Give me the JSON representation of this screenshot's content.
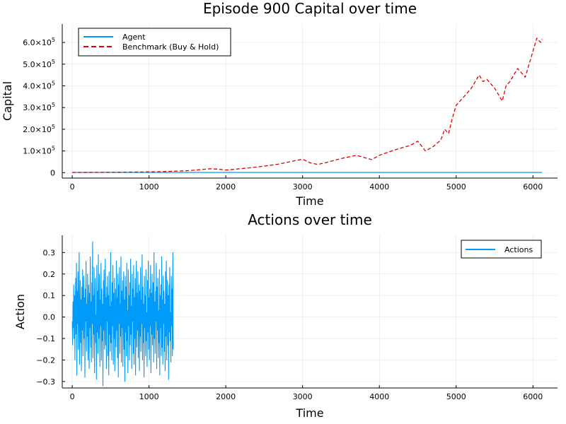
{
  "chart_data": [
    {
      "type": "line",
      "title": "Episode 900 Capital over time",
      "xlabel": "Time",
      "ylabel": "Capital",
      "xlim": [
        -130,
        6320
      ],
      "ylim": [
        -25000,
        685000
      ],
      "xticks": [
        0,
        1000,
        2000,
        3000,
        4000,
        5000,
        6000
      ],
      "xtick_labels": [
        "0",
        "1000",
        "2000",
        "3000",
        "4000",
        "5000",
        "6000"
      ],
      "yticks": [
        0,
        100000,
        200000,
        300000,
        400000,
        500000,
        600000
      ],
      "ytick_labels": [
        "0",
        "1.0×10",
        "2.0×10",
        "3.0×10",
        "4.0×10",
        "5.0×10",
        "6.0×10"
      ],
      "ytick_exponent": "5",
      "grid": true,
      "legend_position": "top-left",
      "series": [
        {
          "name": "Agent",
          "color": "#009af9",
          "style": "solid",
          "x": [
            0,
            6120
          ],
          "values": [
            1000,
            1000
          ]
        },
        {
          "name": "Benchmark (Buy & Hold)",
          "color": "#e20000",
          "style": "dashed",
          "x": [
            0,
            300,
            600,
            900,
            1200,
            1500,
            1800,
            1900,
            2000,
            2100,
            2300,
            2500,
            2700,
            2900,
            3000,
            3100,
            3200,
            3300,
            3500,
            3700,
            3900,
            4000,
            4200,
            4400,
            4500,
            4600,
            4700,
            4800,
            4850,
            4900,
            4950,
            5000,
            5100,
            5200,
            5300,
            5350,
            5400,
            5500,
            5600,
            5650,
            5700,
            5800,
            5900,
            6000,
            6050,
            6100,
            6120
          ],
          "values": [
            1000,
            1500,
            2000,
            3000,
            5000,
            9000,
            18000,
            16000,
            12000,
            15000,
            22000,
            30000,
            40000,
            55000,
            62000,
            45000,
            38000,
            46000,
            65000,
            80000,
            60000,
            80000,
            105000,
            125000,
            145000,
            100000,
            120000,
            150000,
            200000,
            180000,
            250000,
            310000,
            350000,
            390000,
            450000,
            420000,
            430000,
            390000,
            330000,
            400000,
            420000,
            480000,
            440000,
            560000,
            620000,
            600000,
            615000
          ]
        }
      ]
    },
    {
      "type": "line",
      "title": "Actions over time",
      "xlabel": "Time",
      "ylabel": "Action",
      "xlim": [
        -130,
        6320
      ],
      "ylim": [
        -0.33,
        0.38
      ],
      "xticks": [
        0,
        1000,
        2000,
        3000,
        4000,
        5000,
        6000
      ],
      "xtick_labels": [
        "0",
        "1000",
        "2000",
        "3000",
        "4000",
        "5000",
        "6000"
      ],
      "yticks": [
        -0.3,
        -0.2,
        -0.1,
        0.0,
        0.1,
        0.2,
        0.3
      ],
      "ytick_labels": [
        "−0.3",
        "−0.2",
        "−0.1",
        "0.0",
        "0.1",
        "0.2",
        "0.3"
      ],
      "grid": true,
      "legend_position": "top-right",
      "series": [
        {
          "name": "Actions",
          "color": "#009af9",
          "style": "solid",
          "x_start": 0,
          "x_step": 5,
          "values": [
            -0.02,
            -0.13,
            0.07,
            -0.05,
            0.15,
            -0.1,
            0.1,
            -0.2,
            0.05,
            0.18,
            -0.08,
            0.25,
            -0.27,
            0.12,
            -0.03,
            0.21,
            -0.15,
            0.03,
            0.3,
            -0.22,
            0.0,
            0.17,
            -0.12,
            0.08,
            -0.25,
            0.14,
            -0.06,
            0.22,
            -0.18,
            0.04,
            0.19,
            -0.1,
            0.09,
            -0.28,
            0.13,
            -0.02,
            0.26,
            -0.16,
            0.06,
            -0.09,
            0.2,
            -0.2,
            0.02,
            0.15,
            -0.24,
            0.11,
            -0.05,
            0.28,
            -0.14,
            0.07,
            -0.21,
            0.16,
            -0.03,
            0.35,
            -0.19,
            0.1,
            -0.08,
            0.23,
            -0.26,
            0.05,
            0.18,
            -0.12,
            0.01,
            -0.29,
            0.24,
            -0.07,
            0.12,
            -0.17,
            0.29,
            -0.1,
            0.04,
            0.2,
            -0.23,
            0.08,
            -0.04,
            0.25,
            -0.2,
            0.13,
            -0.11,
            0.06,
            -0.32,
            0.17,
            -0.06,
            0.22,
            -0.15,
            0.03,
            0.27,
            -0.13,
            0.09,
            -0.24,
            0.14,
            -0.02,
            0.19,
            -0.18,
            0.1,
            -0.27,
            0.21,
            -0.08,
            0.05,
            -0.16,
            0.3,
            -0.12,
            0.07,
            -0.2,
            0.16,
            -0.04,
            0.24,
            -0.22,
            0.11,
            -0.1,
            0.18,
            -0.25,
            0.02,
            0.13,
            -0.14,
            0.26,
            -0.06,
            0.09,
            -0.19,
            0.2,
            -0.28,
            0.15,
            -0.03,
            0.23,
            -0.17,
            0.06,
            -0.09,
            0.28,
            -0.21,
            0.12,
            -0.05,
            0.17,
            -0.23,
            0.04,
            0.21,
            -0.15,
            0.08,
            -0.3,
            0.19,
            -0.07,
            0.14,
            -0.18,
            0.25,
            -0.11,
            0.03,
            -0.26,
            0.22,
            -0.04,
            0.1,
            -0.2,
            0.16,
            -0.13,
            0.27,
            -0.08,
            0.05,
            -0.24,
            0.2,
            -0.02,
            0.13,
            -0.17,
            0.24,
            -0.22,
            0.09,
            -0.1,
            0.18,
            -0.27,
            0.07,
            0.26,
            -0.14,
            0.11,
            -0.06,
            0.21,
            -0.19,
            0.04,
            0.15,
            -0.25,
            0.12,
            -0.09,
            0.23,
            -0.16,
            0.08,
            -0.03,
            0.29,
            -0.2,
            0.14,
            -0.12,
            0.06,
            -0.28,
            0.19,
            -0.05,
            0.1,
            -0.18,
            0.22,
            -0.11,
            0.02,
            -0.23,
            0.17,
            -0.07,
            0.26,
            -0.15,
            0.09,
            -0.2,
            0.13,
            -0.04,
            0.24,
            -0.26,
            0.11,
            -0.08,
            0.2,
            -0.13,
            0.05,
            0.16,
            -0.21,
            0.3,
            -0.1,
            0.07,
            -0.17,
            0.12,
            -0.02,
            0.25,
            -0.24,
            0.14,
            -0.06,
            0.18,
            -0.19,
            0.03,
            -0.12,
            0.22,
            -0.27,
            0.1,
            -0.05,
            0.15,
            -0.18,
            0.28,
            -0.14,
            0.08,
            -0.22,
            0.19,
            -0.03,
            0.12,
            -0.16,
            0.06,
            -0.25,
            0.21,
            -0.09,
            0.26,
            -0.2,
            0.04,
            0.17,
            -0.13,
            0.1,
            -0.29,
            0.15,
            -0.07,
            0.23,
            -0.11,
            0.02,
            -0.21,
            0.19,
            -0.04,
            0.13,
            -0.18,
            0.3,
            -0.15
          ]
        }
      ]
    }
  ]
}
